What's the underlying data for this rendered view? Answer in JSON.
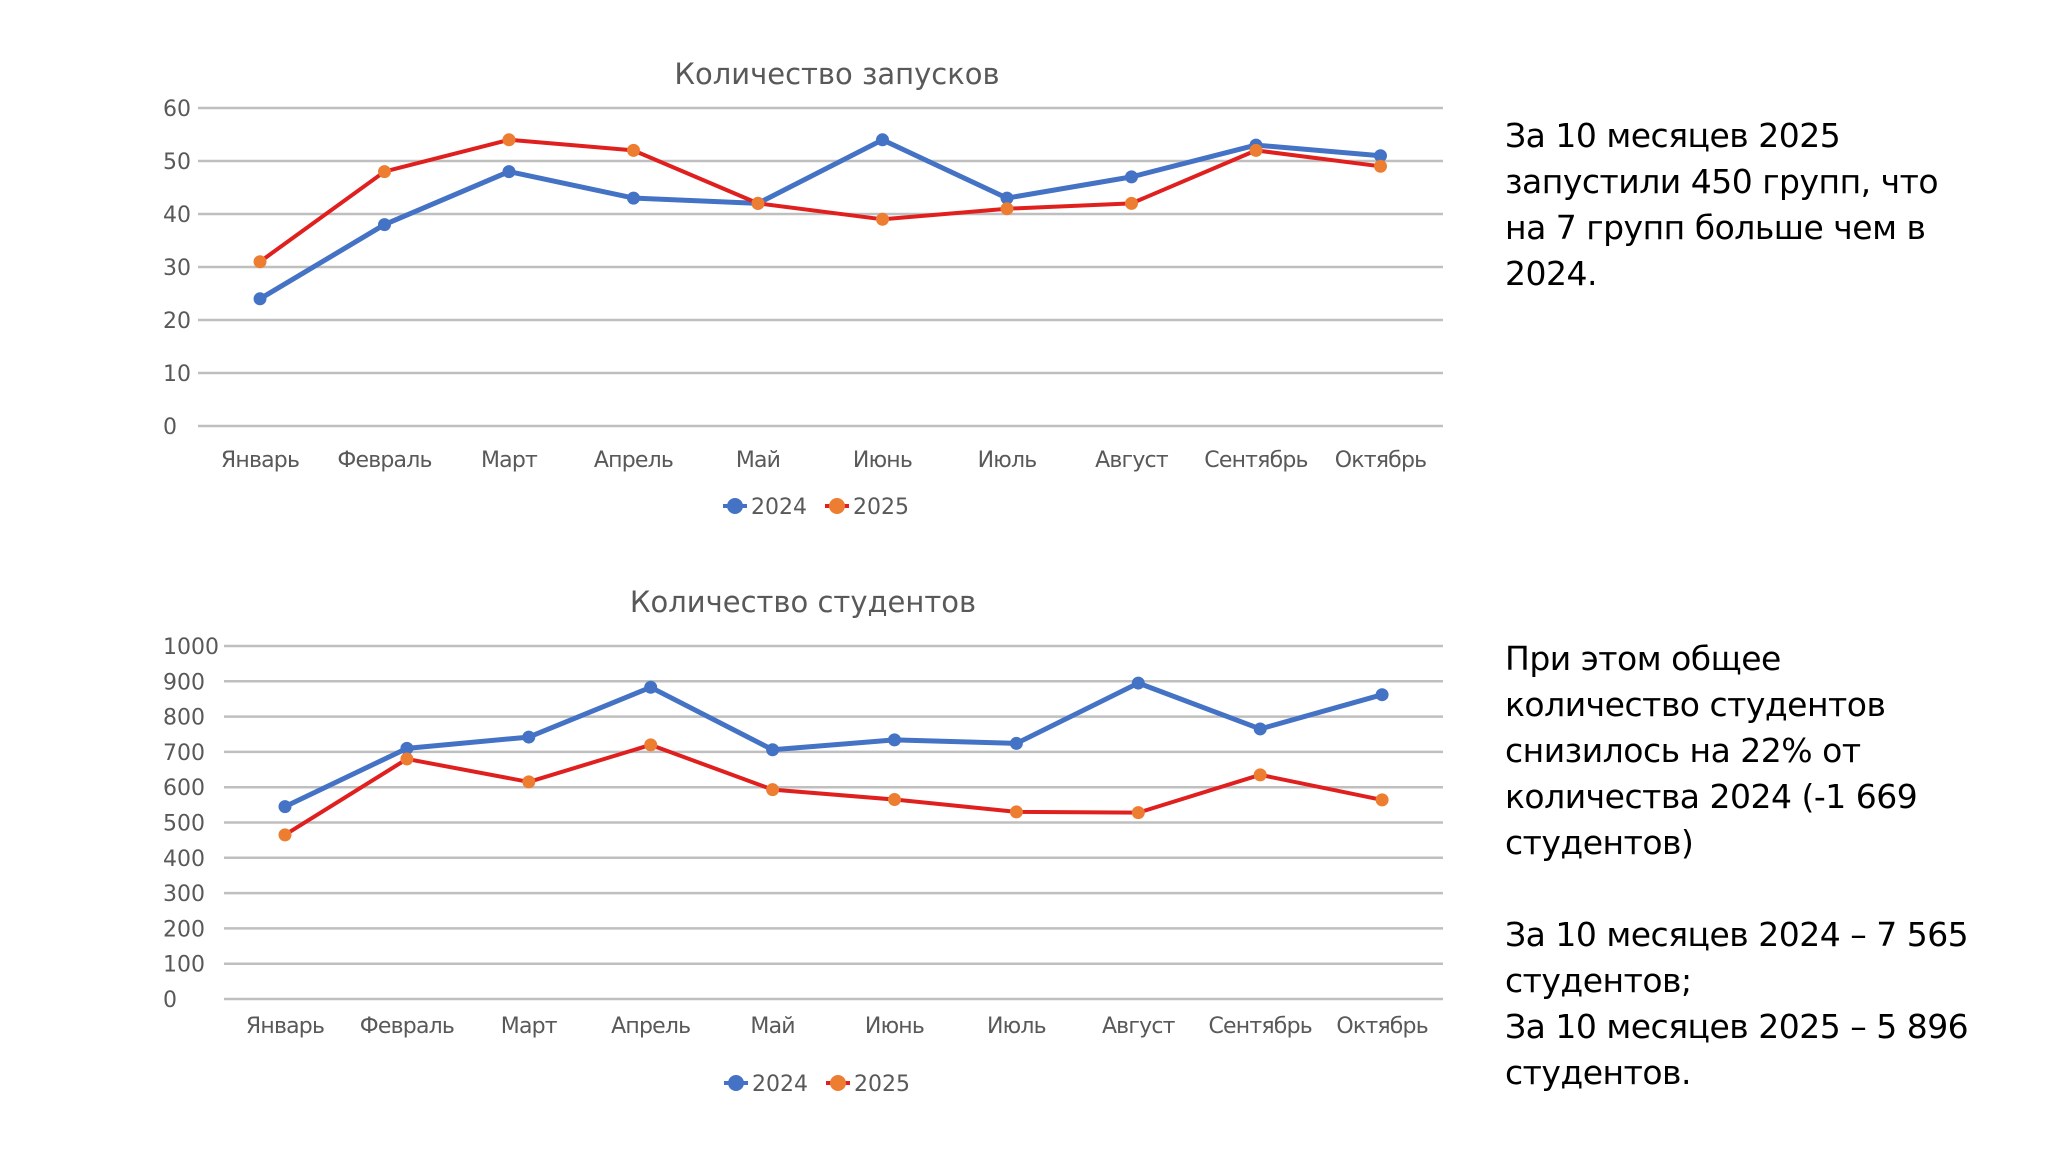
{
  "chart_data": [
    {
      "type": "line",
      "title": "Количество запусков",
      "xlabel": "",
      "ylabel": "",
      "categories": [
        "Январь",
        "Февраль",
        "Март",
        "Апрель",
        "Май",
        "Июнь",
        "Июль",
        "Август",
        "Сентябрь",
        "Октябрь"
      ],
      "ylim": [
        0,
        60
      ],
      "yticks": [
        0,
        10,
        20,
        30,
        40,
        50,
        60
      ],
      "ytick_labels": [
        "0",
        "10",
        "20",
        "30",
        "40",
        "50",
        "60"
      ],
      "grid": true,
      "legend_position": "bottom",
      "series": [
        {
          "name": "2024",
          "values": [
            24,
            38,
            48,
            43,
            42,
            54,
            43,
            47,
            53,
            51
          ],
          "line_color": "#4472C4",
          "marker_color": "#4472C4"
        },
        {
          "name": "2025",
          "values": [
            31,
            48,
            54,
            52,
            42,
            39,
            41,
            42,
            52,
            49
          ],
          "line_color": "#E0201F",
          "marker_color": "#ED7D31"
        }
      ]
    },
    {
      "type": "line",
      "title": "Количество студентов",
      "xlabel": "",
      "ylabel": "",
      "categories": [
        "Январь",
        "Февраль",
        "Март",
        "Апрель",
        "Май",
        "Июнь",
        "Июль",
        "Август",
        "Сентябрь",
        "Октябрь"
      ],
      "ylim": [
        0,
        1000
      ],
      "yticks": [
        0,
        100,
        200,
        300,
        400,
        500,
        600,
        700,
        800,
        900,
        1000
      ],
      "ytick_labels": [
        "0",
        "100",
        "200",
        "300",
        "400",
        "500",
        "600",
        "700",
        "800",
        "900",
        "1000"
      ],
      "grid": true,
      "legend_position": "bottom",
      "series": [
        {
          "name": "2024",
          "values": [
            545,
            710,
            742,
            883,
            706,
            734,
            724,
            895,
            765,
            862
          ],
          "line_color": "#4472C4",
          "marker_color": "#4472C4"
        },
        {
          "name": "2025",
          "values": [
            465,
            680,
            615,
            720,
            593,
            565,
            530,
            528,
            635,
            564
          ],
          "line_color": "#E0201F",
          "marker_color": "#ED7D31"
        }
      ]
    }
  ],
  "notes": {
    "launches": {
      "lines": [
        "За 10 месяцев 2025",
        "запустили 450 групп, что",
        "на 7 групп больше чем в",
        "2024."
      ]
    },
    "students": {
      "lines": [
        "При этом общее",
        "количество студентов",
        "снизилось на 22% от",
        "количества 2024 (-1 669",
        "студентов)"
      ],
      "totals": [
        "За 10 месяцев 2024 – 7 565",
        "студентов;",
        "За 10 месяцев 2025 – 5 896",
        "студентов."
      ]
    }
  },
  "colors": {
    "axis_text": "#595959",
    "grid": "#BFBFBF",
    "series_2024": "#4472C4",
    "series_2025_line": "#E0201F",
    "series_2025_marker": "#ED7D31"
  }
}
